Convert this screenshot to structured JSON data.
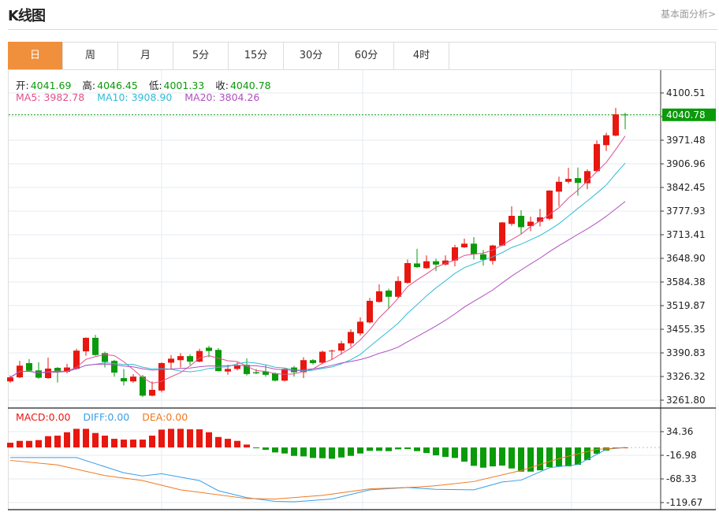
{
  "header": {
    "title": "K线图",
    "link": "基本面分析>"
  },
  "tabs": [
    {
      "label": "日",
      "active": true
    },
    {
      "label": "周"
    },
    {
      "label": "月"
    },
    {
      "label": "5分"
    },
    {
      "label": "15分"
    },
    {
      "label": "30分"
    },
    {
      "label": "60分"
    },
    {
      "label": "4时"
    }
  ],
  "ohlc_legend": {
    "open_label": "开:",
    "open": "4041.69",
    "high_label": "高:",
    "high": "4046.45",
    "low_label": "低:",
    "low": "4001.33",
    "close_label": "收:",
    "close": "4040.78"
  },
  "ma_legend": {
    "ma5": "MA5: 3982.78",
    "ma10": "MA10: 3908.90",
    "ma20": "MA20: 3804.26"
  },
  "macd_legend": {
    "macd": "MACD:0.00",
    "diff": "DIFF:0.00",
    "dea": "DEA:0.00"
  },
  "colors": {
    "up": "#e8170f",
    "down": "#0a9a0a",
    "ma5": "#e0508a",
    "ma10": "#2fbcd6",
    "ma20": "#b04fc0",
    "diff": "#3a9ee8",
    "dea": "#f07820",
    "active_tab": "#f0903c"
  },
  "chart_data": [
    {
      "type": "candlestick",
      "price_axis_ticks": [
        "4100.51",
        "3971.48",
        "3906.96",
        "3842.45",
        "3777.93",
        "3713.41",
        "3648.90",
        "3584.38",
        "3519.87",
        "3455.35",
        "3390.83",
        "3326.32",
        "3261.80"
      ],
      "ylim": [
        3261.8,
        4100.51
      ],
      "current_price": "4040.78",
      "ohlc": [
        [
          3313,
          3329,
          3309,
          3324
        ],
        [
          3324,
          3369,
          3322,
          3356
        ],
        [
          3363,
          3374,
          3340,
          3342
        ],
        [
          3343,
          3365,
          3320,
          3323
        ],
        [
          3322,
          3378,
          3320,
          3348
        ],
        [
          3350,
          3352,
          3310,
          3338
        ],
        [
          3339,
          3361,
          3335,
          3351
        ],
        [
          3347,
          3402,
          3345,
          3397
        ],
        [
          3395,
          3433,
          3383,
          3432
        ],
        [
          3432,
          3440,
          3383,
          3385
        ],
        [
          3390,
          3394,
          3351,
          3366
        ],
        [
          3369,
          3372,
          3326,
          3337
        ],
        [
          3322,
          3347,
          3302,
          3313
        ],
        [
          3313,
          3333,
          3309,
          3326
        ],
        [
          3326,
          3331,
          3270,
          3274
        ],
        [
          3274,
          3313,
          3272,
          3290
        ],
        [
          3288,
          3365,
          3283,
          3363
        ],
        [
          3364,
          3385,
          3345,
          3375
        ],
        [
          3371,
          3390,
          3351,
          3382
        ],
        [
          3382,
          3387,
          3358,
          3367
        ],
        [
          3367,
          3402,
          3365,
          3396
        ],
        [
          3405,
          3410,
          3379,
          3396
        ],
        [
          3399,
          3404,
          3340,
          3341
        ],
        [
          3340,
          3358,
          3331,
          3347
        ],
        [
          3347,
          3365,
          3343,
          3356
        ],
        [
          3358,
          3376,
          3329,
          3333
        ],
        [
          3338,
          3347,
          3333,
          3335
        ],
        [
          3340,
          3358,
          3326,
          3331
        ],
        [
          3335,
          3338,
          3313,
          3315
        ],
        [
          3315,
          3349,
          3313,
          3347
        ],
        [
          3351,
          3355,
          3326,
          3338
        ],
        [
          3338,
          3379,
          3322,
          3371
        ],
        [
          3371,
          3374,
          3359,
          3363
        ],
        [
          3364,
          3397,
          3360,
          3394
        ],
        [
          3395,
          3400,
          3373,
          3397
        ],
        [
          3397,
          3424,
          3386,
          3417
        ],
        [
          3417,
          3455,
          3407,
          3448
        ],
        [
          3444,
          3488,
          3438,
          3476
        ],
        [
          3474,
          3541,
          3471,
          3533
        ],
        [
          3530,
          3578,
          3528,
          3559
        ],
        [
          3561,
          3566,
          3512,
          3544
        ],
        [
          3544,
          3600,
          3541,
          3587
        ],
        [
          3582,
          3646,
          3580,
          3636
        ],
        [
          3635,
          3675,
          3623,
          3625
        ],
        [
          3622,
          3657,
          3620,
          3641
        ],
        [
          3641,
          3648,
          3614,
          3632
        ],
        [
          3632,
          3657,
          3629,
          3643
        ],
        [
          3643,
          3686,
          3627,
          3679
        ],
        [
          3679,
          3703,
          3677,
          3689
        ],
        [
          3689,
          3707,
          3646,
          3660
        ],
        [
          3660,
          3672,
          3629,
          3645
        ],
        [
          3642,
          3686,
          3632,
          3684
        ],
        [
          3684,
          3748,
          3682,
          3747
        ],
        [
          3743,
          3791,
          3738,
          3765
        ],
        [
          3765,
          3780,
          3716,
          3734
        ],
        [
          3737,
          3763,
          3723,
          3749
        ],
        [
          3749,
          3784,
          3736,
          3761
        ],
        [
          3757,
          3835,
          3753,
          3834
        ],
        [
          3831,
          3872,
          3791,
          3858
        ],
        [
          3858,
          3896,
          3853,
          3866
        ],
        [
          3868,
          3897,
          3820,
          3855
        ],
        [
          3854,
          3892,
          3838,
          3887
        ],
        [
          3887,
          3971,
          3885,
          3961
        ],
        [
          3958,
          3992,
          3942,
          3985
        ],
        [
          3984,
          4060,
          3982,
          4042
        ],
        [
          4041.69,
          4046.45,
          4001.33,
          4040.78
        ]
      ]
    },
    {
      "type": "bar+line",
      "axis_ticks": [
        "34.36",
        "-16.98",
        "-68.33",
        "-119.67"
      ],
      "ylim": [
        -119.67,
        34.36
      ],
      "histogram": [
        10.3,
        14.3,
        14.3,
        16,
        24.5,
        25.7,
        33,
        40.5,
        40.5,
        31.4,
        25.7,
        18.8,
        17.1,
        17.1,
        17.1,
        25.7,
        38.8,
        40.5,
        40.5,
        39.4,
        39.4,
        33,
        22.8,
        18.8,
        14.3,
        6.3,
        -0.5,
        -5.1,
        -10.8,
        -13.1,
        -18.3,
        -19.4,
        -22.8,
        -23.4,
        -24.5,
        -21.7,
        -18.3,
        -13.1,
        -7.4,
        -7.4,
        -8.0,
        -4.0,
        -3.4,
        -8.0,
        -12.0,
        -17.1,
        -20.5,
        -22.8,
        -30.8,
        -39.9,
        -43.9,
        -41.1,
        -39.4,
        -45.6,
        -52.5,
        -52.5,
        -49.6,
        -42.8,
        -41.1,
        -41.1,
        -37.6,
        -27.4,
        -13.7,
        -6.8,
        -1,
        0
      ],
      "diff": [
        [
          0,
          -22
        ],
        [
          7,
          -22
        ],
        [
          12,
          -55
        ],
        [
          14,
          -62
        ],
        [
          16,
          -57
        ],
        [
          20,
          -72
        ],
        [
          22,
          -94
        ],
        [
          25,
          -109
        ],
        [
          28,
          -117
        ],
        [
          30,
          -118
        ],
        [
          34,
          -112
        ],
        [
          38,
          -92
        ],
        [
          42,
          -87
        ],
        [
          45,
          -91
        ],
        [
          49,
          -92
        ],
        [
          52,
          -75
        ],
        [
          54,
          -71
        ],
        [
          57,
          -44
        ],
        [
          60,
          -37
        ],
        [
          63,
          -4
        ],
        [
          65,
          0
        ]
      ],
      "dea": [
        [
          0,
          -28
        ],
        [
          5,
          -38
        ],
        [
          10,
          -61
        ],
        [
          14,
          -72
        ],
        [
          18,
          -92
        ],
        [
          25,
          -111
        ],
        [
          28,
          -112
        ],
        [
          33,
          -104
        ],
        [
          38,
          -90
        ],
        [
          43,
          -86
        ],
        [
          45,
          -83
        ],
        [
          49,
          -74
        ],
        [
          54,
          -50
        ],
        [
          58,
          -24
        ],
        [
          62,
          -4
        ],
        [
          65,
          0
        ]
      ]
    }
  ]
}
